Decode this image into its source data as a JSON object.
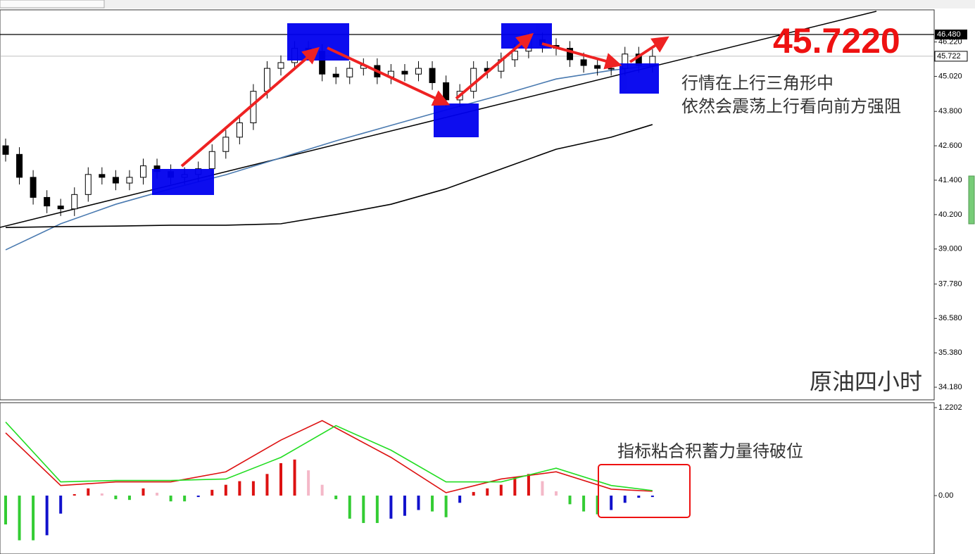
{
  "chart_data": {
    "type": "candlestick",
    "price_banner": "45.7220",
    "notes": [
      "行情在上行三角形中",
      "依然会震荡上行看向前方强阻"
    ],
    "title": "原油四小时",
    "indicator_note": "指标粘合积蓄力量待破位",
    "open": [
      42.6,
      42.3,
      41.5,
      40.8,
      40.5,
      40.4,
      40.9,
      41.6,
      41.5,
      41.3,
      41.5,
      41.9,
      41.7,
      41.5,
      41.6,
      41.8,
      42.4,
      42.9,
      43.4,
      44.5,
      45.3,
      45.5,
      46.0,
      45.9,
      45.1,
      45.0,
      45.3,
      45.4,
      45.0,
      45.2,
      45.1,
      45.3,
      44.8,
      44.2,
      44.5,
      45.3,
      45.2,
      45.6,
      45.9,
      46.3,
      46.1,
      46.0,
      45.6,
      45.4,
      45.3,
      45.3,
      45.8,
      45.4
    ],
    "high": [
      42.85,
      42.55,
      41.75,
      41.05,
      40.75,
      41.15,
      41.85,
      41.85,
      41.75,
      41.75,
      42.15,
      42.15,
      41.95,
      41.85,
      42.05,
      42.65,
      43.15,
      43.65,
      44.75,
      45.55,
      45.75,
      46.25,
      46.25,
      46.15,
      45.35,
      45.55,
      45.65,
      45.65,
      45.45,
      45.45,
      45.55,
      45.55,
      45.05,
      44.75,
      45.55,
      45.55,
      45.85,
      46.15,
      46.55,
      46.55,
      46.35,
      46.25,
      45.85,
      45.65,
      45.55,
      46.05,
      46.05,
      45.97
    ],
    "low": [
      42.05,
      41.25,
      40.55,
      40.25,
      40.15,
      40.15,
      40.65,
      41.25,
      41.05,
      41.05,
      41.25,
      41.45,
      41.25,
      41.25,
      41.35,
      41.55,
      42.15,
      42.65,
      43.15,
      44.25,
      45.05,
      45.25,
      45.65,
      44.85,
      44.75,
      44.75,
      45.05,
      44.75,
      44.75,
      44.85,
      44.85,
      44.55,
      43.95,
      43.95,
      44.25,
      44.95,
      44.95,
      45.35,
      45.65,
      45.85,
      45.75,
      45.35,
      45.15,
      45.05,
      45.05,
      45.05,
      45.15,
      45.15
    ],
    "close": [
      42.3,
      41.5,
      40.8,
      40.5,
      40.4,
      40.9,
      41.6,
      41.5,
      41.3,
      41.5,
      41.9,
      41.7,
      41.5,
      41.6,
      41.8,
      42.4,
      42.9,
      43.4,
      44.5,
      45.3,
      45.5,
      46.0,
      45.9,
      45.1,
      45.0,
      45.3,
      45.4,
      45.0,
      45.2,
      45.1,
      45.3,
      44.8,
      44.2,
      44.5,
      45.3,
      45.2,
      45.6,
      45.9,
      46.3,
      46.1,
      46.0,
      45.6,
      45.4,
      45.3,
      45.3,
      45.8,
      45.4,
      45.72
    ],
    "up_color": "#ffffff",
    "down_color": "#000000",
    "lines": [
      {
        "color": "#4a7ab0",
        "x": [
          0,
          4,
          8,
          12,
          16,
          20,
          24,
          28,
          32,
          36,
          40,
          44,
          47
        ],
        "values": [
          38.97,
          39.88,
          40.56,
          41.1,
          41.59,
          42.18,
          42.77,
          43.31,
          43.85,
          44.37,
          44.93,
          45.23,
          45.4
        ]
      },
      {
        "color": "#000000",
        "x": [
          0,
          4,
          8,
          12,
          16,
          20,
          24,
          28,
          32,
          36,
          40,
          44,
          47
        ],
        "values": [
          39.75,
          39.78,
          39.8,
          39.83,
          39.83,
          39.88,
          40.2,
          40.56,
          41.1,
          41.79,
          42.48,
          42.9,
          43.34
        ]
      }
    ],
    "ylim": [
      33.74,
      47.34
    ],
    "yticks": [
      {
        "value": 46.22,
        "label": "46.220"
      },
      {
        "value": 45.02,
        "label": "45.020"
      },
      {
        "value": 43.8,
        "label": "43.800"
      },
      {
        "value": 42.6,
        "label": "42.600"
      },
      {
        "value": 41.4,
        "label": "41.400"
      },
      {
        "value": 40.2,
        "label": "40.200"
      },
      {
        "value": 39.0,
        "label": "39.000"
      },
      {
        "value": 37.78,
        "label": "37.780"
      },
      {
        "value": 36.58,
        "label": "36.580"
      },
      {
        "value": 35.38,
        "label": "35.380"
      },
      {
        "value": 34.18,
        "label": "34.180"
      }
    ],
    "resistance": {
      "value": 46.48,
      "label": "46.480"
    },
    "current_price": 45.722,
    "macd": {
      "histogram": [
        -0.4,
        -0.62,
        -0.62,
        -0.55,
        -0.25,
        0.02,
        0.1,
        0.03,
        -0.05,
        -0.06,
        0.1,
        0.04,
        -0.08,
        -0.08,
        -0.02,
        0.08,
        0.15,
        0.2,
        0.2,
        0.3,
        0.45,
        0.5,
        0.35,
        0.15,
        -0.05,
        -0.32,
        -0.38,
        -0.38,
        -0.32,
        -0.28,
        -0.2,
        -0.22,
        -0.3,
        -0.1,
        0.05,
        0.1,
        0.15,
        0.25,
        0.3,
        0.2,
        0.06,
        -0.12,
        -0.22,
        -0.26,
        -0.2,
        -0.1,
        -0.03,
        -0.02
      ],
      "colors": {
        "pos_up": "#dd1111",
        "pos_down": "#f4b8c8",
        "neg_down": "#33cc33",
        "neg_up": "#1111cc"
      },
      "lines": [
        {
          "color": "#dd1111",
          "x": [
            0,
            4,
            8,
            12,
            16,
            20,
            23,
            28,
            32,
            36,
            40,
            44,
            47
          ],
          "values": [
            0.87,
            0.14,
            0.19,
            0.19,
            0.33,
            0.77,
            1.04,
            0.53,
            0.04,
            0.23,
            0.33,
            0.09,
            0.06
          ]
        },
        {
          "color": "#22dd22",
          "x": [
            0,
            4,
            8,
            12,
            16,
            20,
            24,
            28,
            32,
            36,
            40,
            44,
            47
          ],
          "values": [
            1.02,
            0.19,
            0.21,
            0.21,
            0.23,
            0.53,
            0.97,
            0.63,
            0.19,
            0.19,
            0.38,
            0.14,
            0.07
          ]
        }
      ],
      "ylim": [
        -0.81,
        1.289
      ],
      "yticks": [
        {
          "value": 1.2202,
          "label": "1.2202"
        },
        {
          "value": 0,
          "label": "0.00"
        }
      ]
    }
  }
}
